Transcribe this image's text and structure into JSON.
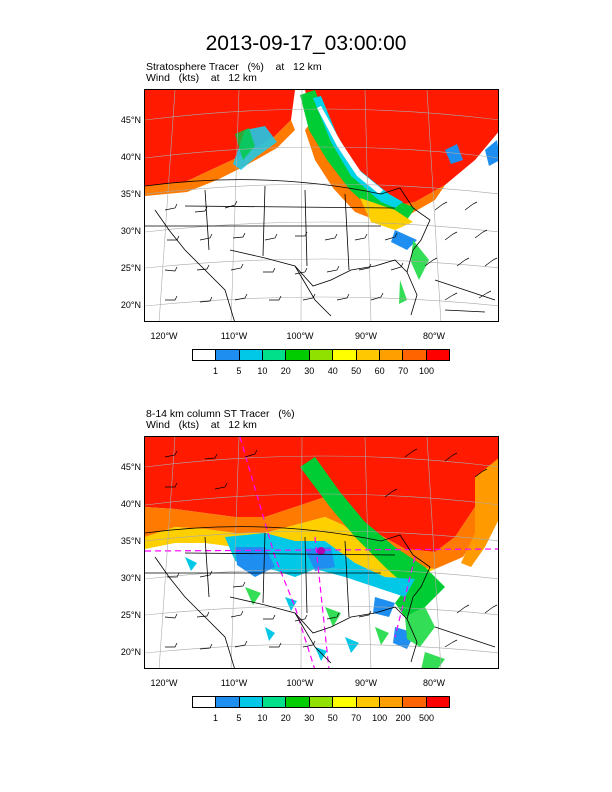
{
  "title": "2013-09-17_03:00:00",
  "panel1": {
    "title_line1": "Stratosphere Tracer   (%)    at   12 km",
    "title_line2": "Wind   (kts)    at   12 km",
    "lat_labels": [
      "45°N",
      "40°N",
      "35°N",
      "30°N",
      "25°N",
      "20°N"
    ],
    "lon_labels": [
      "120°W",
      "110°W",
      "100°W",
      "90°W",
      "80°W"
    ],
    "colorbar_labels": [
      "1",
      "5",
      "10",
      "20",
      "30",
      "40",
      "50",
      "60",
      "70",
      "100"
    ],
    "colorbar_colors": [
      "#ffffff",
      "#1e8ff0",
      "#00c8e6",
      "#00e08a",
      "#00cc00",
      "#90e000",
      "#ffff00",
      "#ffc800",
      "#ffa000",
      "#ff6400",
      "#ff0000"
    ]
  },
  "panel2": {
    "title_line1": "8-14 km column ST Tracer   (%)",
    "title_line2": "Wind   (kts)    at   12 km",
    "lat_labels": [
      "45°N",
      "40°N",
      "35°N",
      "30°N",
      "25°N",
      "20°N"
    ],
    "lon_labels": [
      "120°W",
      "110°W",
      "100°W",
      "90°W",
      "80°W"
    ],
    "colorbar_labels": [
      "1",
      "5",
      "10",
      "20",
      "30",
      "50",
      "70",
      "100",
      "200",
      "500"
    ],
    "colorbar_colors": [
      "#ffffff",
      "#1e8ff0",
      "#00c8e6",
      "#00e08a",
      "#00cc00",
      "#90e000",
      "#ffff00",
      "#ffc800",
      "#ffa000",
      "#ff6400",
      "#ff0000"
    ]
  }
}
